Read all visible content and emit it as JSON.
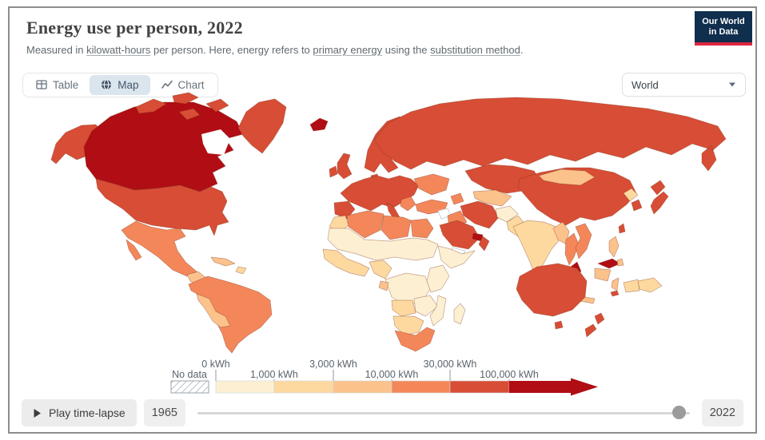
{
  "header": {
    "title": "Energy use per person, 2022",
    "subtitle": {
      "p1": "Measured in ",
      "link1": "kilowatt-hours",
      "p2": " per person. Here, energy refers to ",
      "link2": "primary energy",
      "p3": " using the ",
      "link3": "substitution method",
      "p4": "."
    }
  },
  "logo": {
    "line1": "Our World",
    "line2": "in Data"
  },
  "tabs": {
    "table": "Table",
    "map": "Map",
    "chart": "Chart",
    "active": "Map"
  },
  "entity_selector": {
    "value": "World"
  },
  "legend": {
    "no_data_label": "No data",
    "ticks": [
      "0 kWh",
      "1,000 kWh",
      "3,000 kWh",
      "10,000 kWh",
      "30,000 kWh",
      "100,000 kWh"
    ],
    "colors": [
      "#fdf0d2",
      "#fdd9a0",
      "#fcc28c",
      "#f4875a",
      "#d84d35",
      "#b00d14"
    ]
  },
  "timeline": {
    "play_label": "Play time-lapse",
    "start_year": "1965",
    "end_year": "2022",
    "current_year": "2022",
    "handle_pct": 97
  },
  "colors": {
    "logo_bg": "#102e4e",
    "logo_accent": "#dc2640",
    "active_tab_bg": "#dbe5ee",
    "active_tab_text": "#44586a",
    "frame_border": "#8d8d8d",
    "slider_handle": "#9b9b9b"
  },
  "map": {
    "border_stroke": "rgba(125,52,28,0.45)",
    "no_data_fill": "#ffffff",
    "no_data_stroke": "#bfc7cc",
    "region_bins": {
      "alaska": 5,
      "canada": 6,
      "arctic1": 5,
      "arctic2": 5,
      "arctic3": 5,
      "arctic4": 5,
      "greenland": 5,
      "usa": 5,
      "mexico": 4,
      "central-america": 3,
      "cuba": 3,
      "hispaniola": 2,
      "south-america": 4,
      "peru-bolivia": 3,
      "iceland": 6,
      "uk": 5,
      "ireland": 5,
      "scandinavia": 5,
      "denmark": 5,
      "europe": 5,
      "iberia": 5,
      "italy": 5,
      "balkans": 4,
      "ukraine": 4,
      "russia": 5,
      "kazakhstan": 5,
      "central-asia": 3,
      "turkey": 4,
      "caucasus": 4,
      "syria": 0,
      "iraq": 4,
      "iran": 5,
      "saudi-arabia": 5,
      "uae-qatar": 6,
      "oman": 5,
      "yemen": 0,
      "afghanistan": 1,
      "pakistan": 2,
      "india": 2,
      "sri-lanka": 2,
      "china": 5,
      "mongolia": 3,
      "north-korea": 2,
      "south-korea": 5,
      "japan-north": 5,
      "japan-south": 5,
      "taiwan": 5,
      "myanmar": 3,
      "thailand": 4,
      "vietnam": 4,
      "malaysia": 6,
      "borneo-malaysia": 6,
      "borneo-indonesia": 3,
      "sumatra": 3,
      "java": 3,
      "sulawesi": 3,
      "philippines": 3,
      "papua-new-guinea": 2,
      "papua-indonesia": 2,
      "morocco": 2,
      "algeria": 4,
      "libya": 4,
      "egypt": 4,
      "sahel": 1,
      "west-africa": 2,
      "nigeria": 2,
      "horn-of-africa": 1,
      "drc": 1,
      "east-africa": 1,
      "gabon": 3,
      "angola": 2,
      "zambia-zimbabwe": 1,
      "mozambique": 1,
      "namibia-botswana": 2,
      "south-africa": 4,
      "madagascar": 1,
      "australia": 5,
      "tasmania": 5,
      "nz-north": 5,
      "nz-south": 5,
      "new-caledonia": 5
    }
  }
}
